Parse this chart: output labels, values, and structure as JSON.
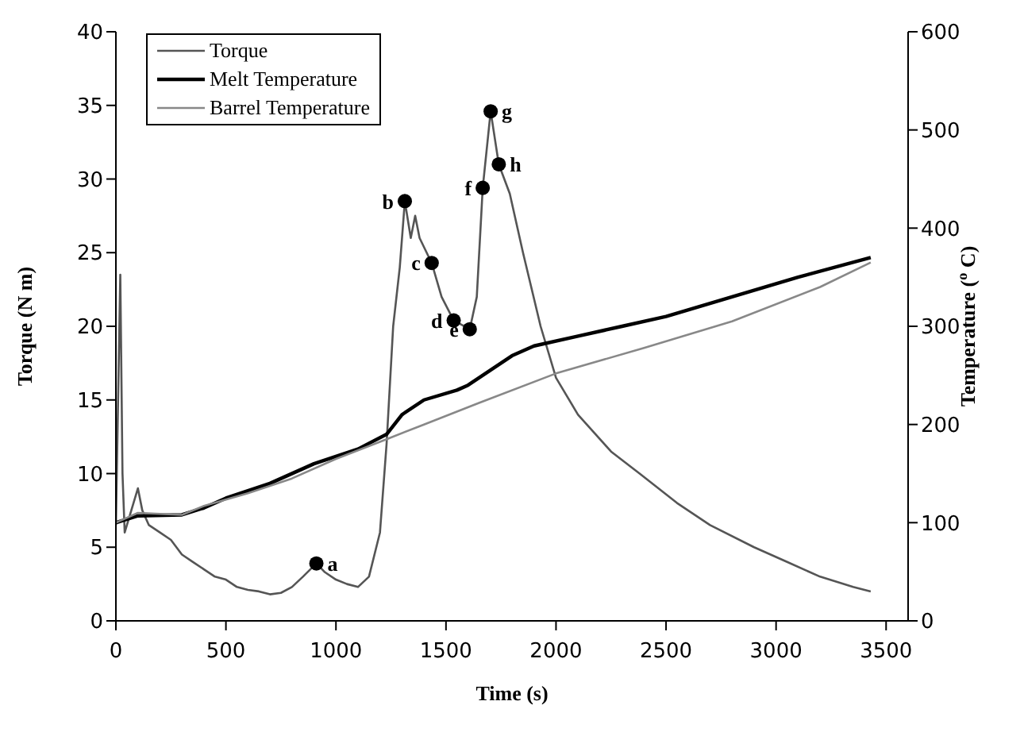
{
  "chart_data": {
    "type": "line",
    "xlabel": "Time (s)",
    "ylabel": "Torque (N m)",
    "y2label": "Temperature ($^{o}$C)",
    "xlim": [
      0,
      3600
    ],
    "xticks": [
      0,
      500,
      1000,
      1500,
      2000,
      2500,
      3000,
      3500
    ],
    "ylim": [
      0,
      40
    ],
    "yticks": [
      0,
      5,
      10,
      15,
      20,
      25,
      30,
      35,
      40
    ],
    "y2lim": [
      0,
      600
    ],
    "y2ticks": [
      0,
      100,
      200,
      300,
      400,
      500,
      600
    ],
    "grid": false,
    "legend": "top left",
    "marker": "none",
    "line_style": "solid",
    "series": [
      {
        "name": "Torque",
        "color": "#555555",
        "x": [
          0,
          10,
          20,
          30,
          40,
          60,
          80,
          100,
          120,
          150,
          200,
          250,
          300,
          350,
          400,
          450,
          500,
          550,
          600,
          650,
          700,
          750,
          800,
          850,
          911,
          950,
          1000,
          1050,
          1100,
          1150,
          1200,
          1230,
          1260,
          1290,
          1313,
          1340,
          1360,
          1380,
          1435,
          1480,
          1535,
          1608,
          1640,
          1667,
          1703,
          1740,
          1790,
          1850,
          1930,
          2000,
          2100,
          2250,
          2380,
          2550,
          2700,
          2900,
          3050,
          3200,
          3350,
          3430
        ],
        "values": [
          6.5,
          15,
          23.5,
          10,
          6,
          7,
          8,
          9,
          7.5,
          6.5,
          6,
          5.5,
          4.5,
          4,
          3.5,
          3,
          2.8,
          2.3,
          2.1,
          2,
          1.8,
          1.9,
          2.3,
          3,
          3.9,
          3.3,
          2.8,
          2.5,
          2.3,
          3,
          6,
          12,
          20,
          24,
          28.5,
          26,
          27.5,
          26,
          24.3,
          22,
          20.4,
          19.8,
          22,
          29.4,
          34.6,
          31,
          29,
          25,
          20,
          16.5,
          14,
          11.5,
          10,
          8,
          6.5,
          5,
          4,
          3,
          2.3,
          2
        ]
      },
      {
        "name": "Melt Temperature",
        "color": "#000000",
        "axis": "y2",
        "x": [
          0,
          100,
          300,
          400,
          500,
          700,
          900,
          1100,
          1230,
          1300,
          1400,
          1550,
          1600,
          1700,
          1800,
          1900,
          2100,
          2300,
          2500,
          2800,
          3100,
          3430
        ],
        "values": [
          100,
          107,
          108,
          115,
          125,
          140,
          160,
          175,
          190,
          210,
          225,
          235,
          240,
          255,
          270,
          280,
          290,
          300,
          310,
          330,
          350,
          370
        ]
      },
      {
        "name": "Barrel Temperature",
        "color": "#888888",
        "axis": "y2",
        "x": [
          0,
          100,
          300,
          400,
          600,
          800,
          1000,
          1230,
          1400,
          1650,
          2000,
          2400,
          2800,
          3200,
          3430
        ],
        "values": [
          100,
          110,
          108,
          117,
          130,
          145,
          165,
          185,
          200,
          222,
          252,
          278,
          305,
          340,
          365
        ]
      },
      {
        "type": "scatter",
        "color": "#000000",
        "marker": "circle",
        "x": [
          911,
          1313,
          1435,
          1535,
          1608,
          1667,
          1703,
          1740
        ],
        "values": [
          3.9,
          28.5,
          24.3,
          20.4,
          19.8,
          29.4,
          34.6,
          31
        ]
      }
    ],
    "annotations": [
      {
        "text": "a",
        "x": 911,
        "y": 3.9
      },
      {
        "text": "b",
        "x": 1313,
        "y": 28.5
      },
      {
        "text": "c",
        "x": 1435,
        "y": 24.3
      },
      {
        "text": "d",
        "x": 1535,
        "y": 20.4
      },
      {
        "text": "e",
        "x": 1608,
        "y": 19.8
      },
      {
        "text": "f",
        "x": 1667,
        "y": 29.4
      },
      {
        "text": "g",
        "x": 1703,
        "y": 34.6
      },
      {
        "text": "h",
        "x": 1740,
        "y": 31
      }
    ]
  }
}
